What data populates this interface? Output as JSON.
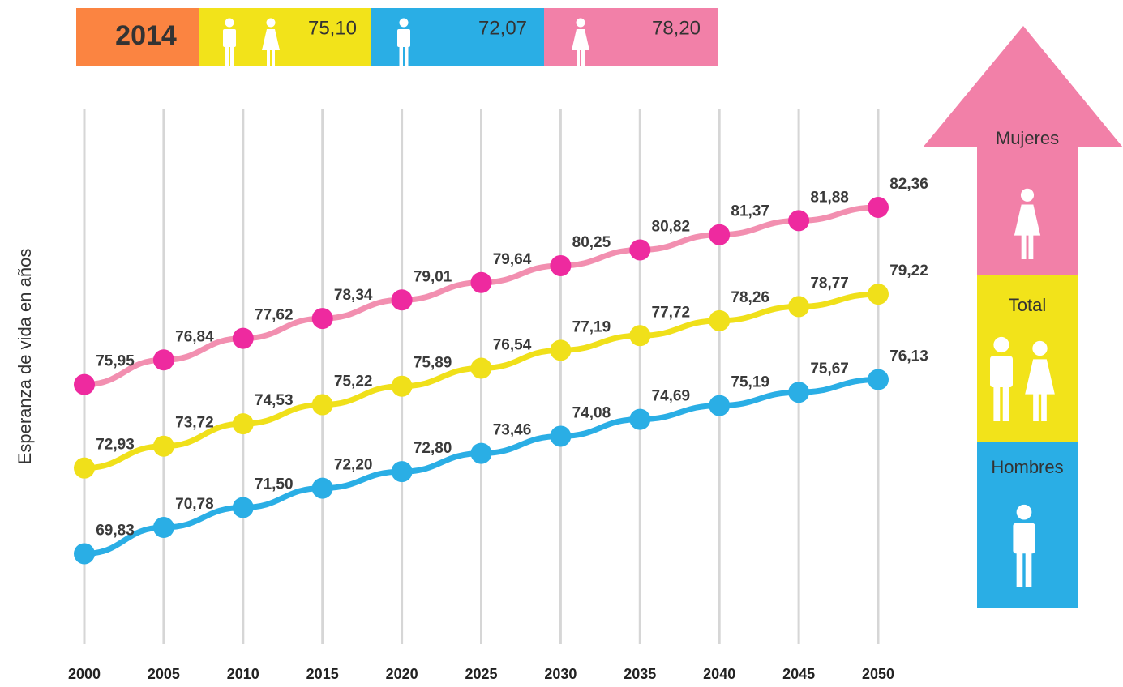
{
  "banner": {
    "year": "2014",
    "total": "75,10",
    "hombres": "72,07",
    "mujeres": "78,20"
  },
  "chart_data": {
    "type": "line",
    "y_label": "Esperanza de vida en años",
    "categories": [
      "2000",
      "2005",
      "2010",
      "2015",
      "2020",
      "2025",
      "2030",
      "2035",
      "2040",
      "2045",
      "2050"
    ],
    "ylim": [
      67,
      84
    ],
    "grid": true,
    "series": [
      {
        "name": "Mujeres",
        "color": "#f28fb0",
        "marker_color": "#ee2a9f",
        "values": [
          75.95,
          76.84,
          77.62,
          78.34,
          79.01,
          79.64,
          80.25,
          80.82,
          81.37,
          81.88,
          82.36
        ],
        "value_labels": [
          "75,95",
          "76,84",
          "77,62",
          "78,34",
          "79,01",
          "79,64",
          "80,25",
          "80,82",
          "81,37",
          "81,88",
          "82,36"
        ]
      },
      {
        "name": "Total",
        "color": "#f0e01a",
        "marker_color": "#f0e01a",
        "values": [
          72.93,
          73.72,
          74.53,
          75.22,
          75.89,
          76.54,
          77.19,
          77.72,
          78.26,
          78.77,
          79.22
        ],
        "value_labels": [
          "72,93",
          "73,72",
          "74,53",
          "75,22",
          "75,89",
          "76,54",
          "77,19",
          "77,72",
          "78,26",
          "78,77",
          "79,22"
        ]
      },
      {
        "name": "Hombres",
        "color": "#2aaee5",
        "marker_color": "#2aaee5",
        "values": [
          69.83,
          70.78,
          71.5,
          72.2,
          72.8,
          73.46,
          74.08,
          74.69,
          75.19,
          75.67,
          76.13
        ],
        "value_labels": [
          "69,83",
          "70,78",
          "71,50",
          "72,20",
          "72,80",
          "73,46",
          "74,08",
          "74,69",
          "75,19",
          "75,67",
          "76,13"
        ]
      }
    ]
  }
}
